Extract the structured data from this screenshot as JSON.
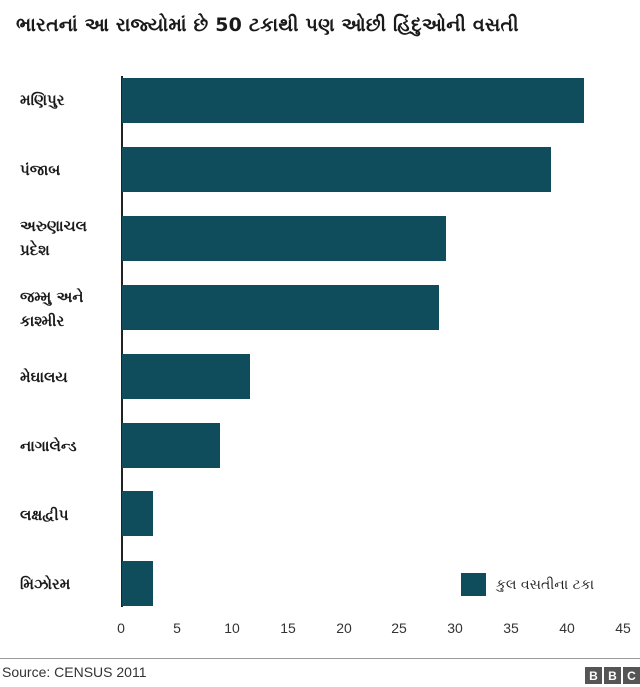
{
  "title": "ભારતનાં આ રાજ્યોમાં છે 50 ટકાથી પણ ઓછી હિંદુઓની વસતી",
  "chart_data": {
    "type": "bar",
    "orientation": "horizontal",
    "title": "ભારતનાં આ રાજ્યોમાં છે 50 ટકાથી પણ ઓછી હિંદુઓની વસતી",
    "categories": [
      "મણિપુર",
      "પંજાબ",
      "અરુણાચલ પ્રદેશ",
      "જમ્મુ અને કાશ્મીર",
      "મેઘાલય",
      "નાગાલેન્ડ",
      "લક્ષદ્વીપ",
      "મિઝોરમ"
    ],
    "series": [
      {
        "name": "કુલ વસતીના ટકા",
        "color": "#0f4c5c",
        "values": [
          41.4,
          38.5,
          29.0,
          28.4,
          11.5,
          8.8,
          2.8,
          2.8
        ]
      }
    ],
    "xlabel": "",
    "ylabel": "",
    "xlim": [
      0,
      45
    ],
    "xticks": [
      0,
      5,
      10,
      15,
      20,
      25,
      30,
      35,
      40,
      45
    ],
    "grid": false,
    "legend_position": "bottom-right"
  },
  "categories_display": [
    {
      "line1": "મણિપુર",
      "line2": ""
    },
    {
      "line1": "પંજાબ",
      "line2": ""
    },
    {
      "line1": "અરુણાચલ",
      "line2": "પ્રદેશ"
    },
    {
      "line1": "જમ્મુ અને",
      "line2": "કાશ્મીર"
    },
    {
      "line1": "મેઘાલય",
      "line2": ""
    },
    {
      "line1": "નાગાલેન્ડ",
      "line2": ""
    },
    {
      "line1": "લક્ષદ્વીપ",
      "line2": ""
    },
    {
      "line1": "મિઝોરમ",
      "line2": ""
    }
  ],
  "ticks": [
    "0",
    "5",
    "10",
    "15",
    "20",
    "25",
    "30",
    "35",
    "40",
    "45"
  ],
  "legend": {
    "label": "કુલ વસતીના ટકા"
  },
  "footer": {
    "source": "Source: CENSUS 2011",
    "logo": [
      "B",
      "B",
      "C"
    ]
  }
}
